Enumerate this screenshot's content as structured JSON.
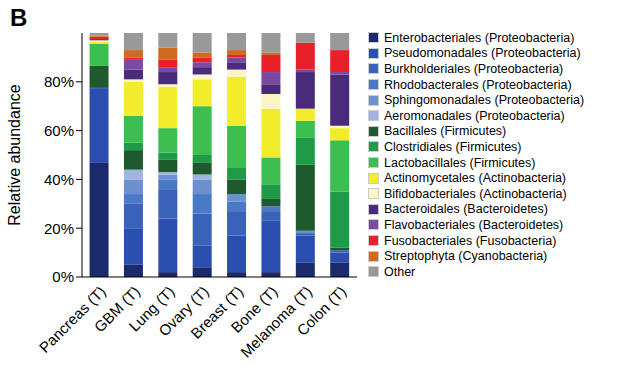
{
  "chart_data": {
    "type": "bar",
    "title": "B",
    "y_label": "Relative abundance",
    "stacked": true,
    "legend": "right",
    "categories": [
      "Pancreas (T)",
      "GBM (T)",
      "Lung (T)",
      "Ovary (T)",
      "Breast (T)",
      "Bone (T)",
      "Melanoma (T)",
      "Colon (T)"
    ],
    "ylim": [
      0,
      100
    ],
    "yticks": [
      {
        "value": 0,
        "label": "0%"
      },
      {
        "value": 20,
        "label": "20%"
      },
      {
        "value": 40,
        "label": "40%"
      },
      {
        "value": 60,
        "label": "60%"
      },
      {
        "value": 80,
        "label": "80%"
      }
    ],
    "series": [
      {
        "name": "Enterobacteriales (Proteobacteria)",
        "color": "#1a2a6c",
        "values": [
          47,
          5,
          2,
          4,
          2,
          2,
          6,
          6
        ]
      },
      {
        "name": "Pseudomonadales (Proteobacteria)",
        "color": "#2a4fb0",
        "values": [
          30,
          15,
          22,
          9,
          15,
          21,
          11,
          4
        ]
      },
      {
        "name": "Burkholderiales (Proteobacteria)",
        "color": "#3a62b8",
        "values": [
          0.5,
          10,
          12,
          13,
          10,
          4,
          1,
          1
        ]
      },
      {
        "name": "Rhodobacterales (Proteobacteria)",
        "color": "#4a7ac6",
        "values": [
          0,
          4,
          4,
          8,
          4,
          2,
          0,
          0
        ]
      },
      {
        "name": "Sphingomonadales (Proteobacteria)",
        "color": "#6d90d0",
        "values": [
          0,
          6,
          2,
          6,
          3,
          0,
          1,
          0
        ]
      },
      {
        "name": "Aeromonadales (Proteobacteria)",
        "color": "#a0b4e0",
        "values": [
          0,
          4,
          1,
          2,
          0,
          0,
          0,
          0
        ]
      },
      {
        "name": "Bacillales (Firmicutes)",
        "color": "#1e5a2e",
        "values": [
          9,
          8,
          5,
          5,
          6,
          3,
          27,
          1
        ]
      },
      {
        "name": "Clostridiales (Firmicutes)",
        "color": "#1e9a48",
        "values": [
          0,
          3,
          3,
          3,
          5,
          6,
          11,
          23
        ]
      },
      {
        "name": "Lactobacillales (Firmicutes)",
        "color": "#3cbf50",
        "values": [
          9,
          11,
          10,
          20,
          17,
          11,
          7,
          21
        ]
      },
      {
        "name": "Actinomycetales (Actinobacteria)",
        "color": "#f2ec2a",
        "values": [
          1,
          14,
          17,
          11,
          20,
          20,
          5,
          5
        ]
      },
      {
        "name": "Bifidobacteriales (Actinobacteria)",
        "color": "#fbf6c8",
        "values": [
          0.5,
          1,
          1,
          2,
          3,
          6,
          0,
          1
        ]
      },
      {
        "name": "Bacteroidales (Bacteroidetes)",
        "color": "#4a2a7a",
        "values": [
          0.5,
          4,
          5,
          3,
          3,
          4,
          15,
          21
        ]
      },
      {
        "name": "Flavobacteriales (Bacteroidetes)",
        "color": "#7a4aa0",
        "values": [
          0,
          4,
          2,
          2,
          2,
          5,
          1,
          1
        ]
      },
      {
        "name": "Fusobacteriales (Fusobacteria)",
        "color": "#e8202a",
        "values": [
          1,
          1,
          3,
          2,
          1,
          7,
          11,
          9
        ]
      },
      {
        "name": "Streptophyta (Cyanobacteria)",
        "color": "#d06a20",
        "values": [
          0.5,
          3,
          5,
          2,
          2,
          1,
          0,
          0
        ]
      },
      {
        "name": "Other",
        "color": "#999999",
        "values": [
          1,
          7,
          6,
          8,
          7,
          8,
          4,
          7
        ]
      }
    ]
  }
}
